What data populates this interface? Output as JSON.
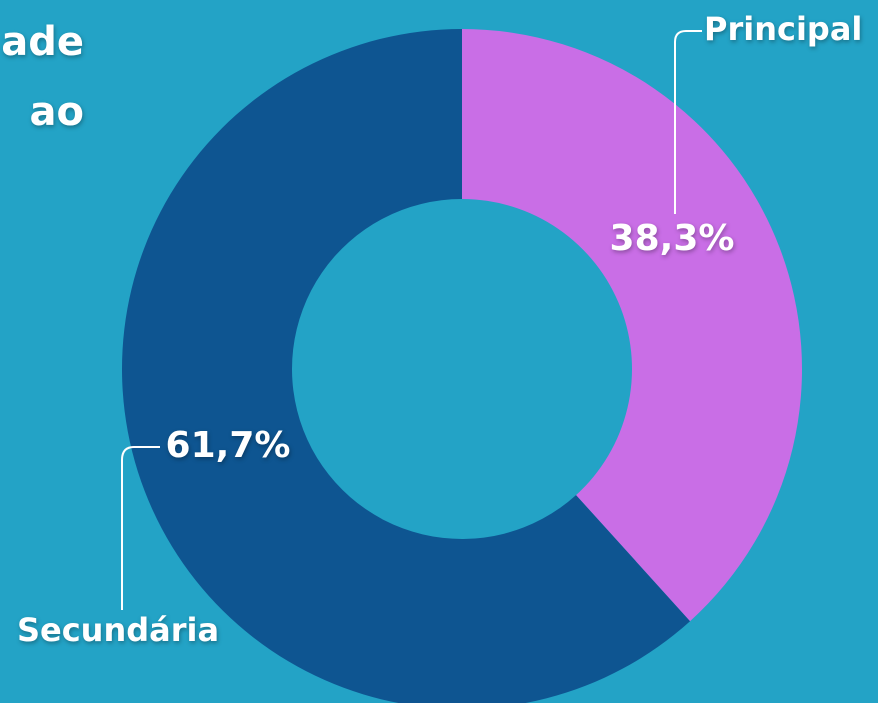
{
  "chart_data": {
    "type": "pie",
    "title_lines": [
      "ade",
      "ao"
    ],
    "categories": [
      "Principal",
      "Secundária"
    ],
    "values": [
      38.3,
      61.7
    ],
    "value_labels": [
      "38,3%",
      "61,7%"
    ],
    "colors": [
      "#c96ee6",
      "#0e5591"
    ]
  }
}
